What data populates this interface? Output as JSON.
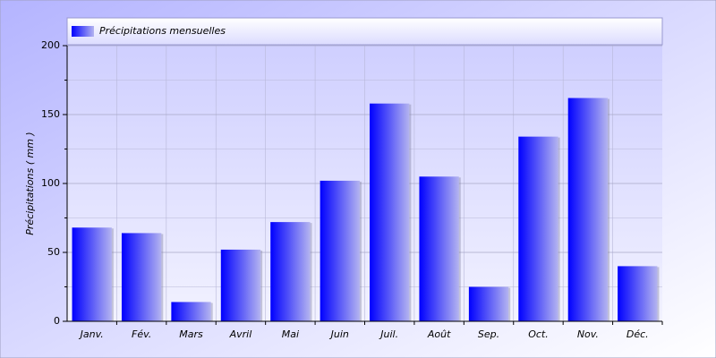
{
  "chart_data": {
    "type": "bar",
    "legend": "Précipitations mensuelles",
    "y_label": "Précipitations ( mm )",
    "categories": [
      "Janv.",
      "Fév.",
      "Mars",
      "Avril",
      "Mai",
      "Juin",
      "Juil.",
      "Août",
      "Sep.",
      "Oct.",
      "Nov.",
      "Déc."
    ],
    "values": [
      68,
      64,
      14,
      52,
      72,
      102,
      158,
      105,
      25,
      134,
      162,
      40
    ],
    "color": "#0000ff",
    "ylim": [
      0,
      200
    ],
    "yticks": [
      0,
      50,
      100,
      150,
      200
    ],
    "minor_yticks": [
      25,
      75,
      125,
      175
    ],
    "grid": true
  }
}
